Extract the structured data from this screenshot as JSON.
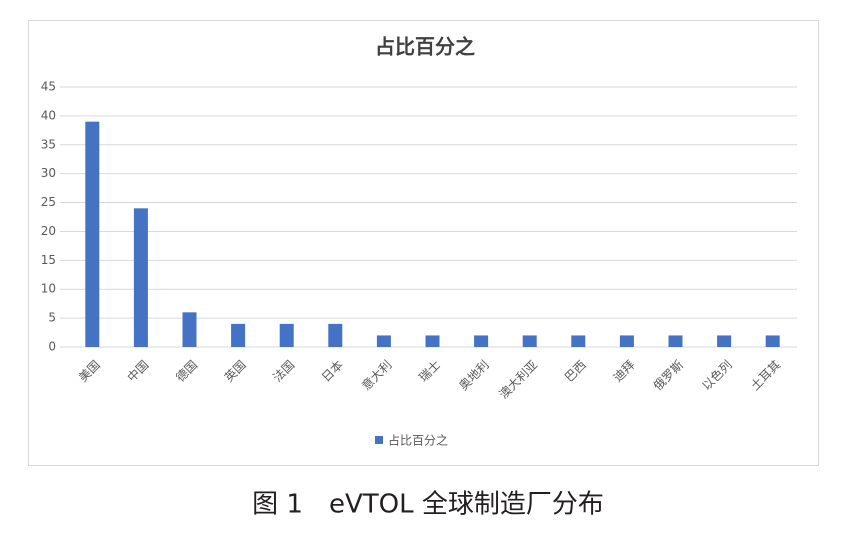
{
  "chart_data": {
    "type": "bar",
    "title": "占比百分之",
    "categories": [
      "美国",
      "中国",
      "德国",
      "英国",
      "法国",
      "日本",
      "意大利",
      "瑞士",
      "奥地利",
      "澳大利亚",
      "巴西",
      "迪拜",
      "俄罗斯",
      "以色列",
      "土耳其"
    ],
    "series": [
      {
        "name": "占比百分之",
        "color": "#4472c4",
        "values": [
          39,
          24,
          6,
          4,
          4,
          4,
          2,
          2,
          2,
          2,
          2,
          2,
          2,
          2,
          2
        ]
      }
    ],
    "ylim": [
      0,
      45
    ],
    "yticks": [
      0,
      5,
      10,
      15,
      20,
      25,
      30,
      35,
      40,
      45
    ],
    "grid": true,
    "legend": "bottom"
  },
  "caption": "图 1　eVTOL 全球制造厂分布"
}
